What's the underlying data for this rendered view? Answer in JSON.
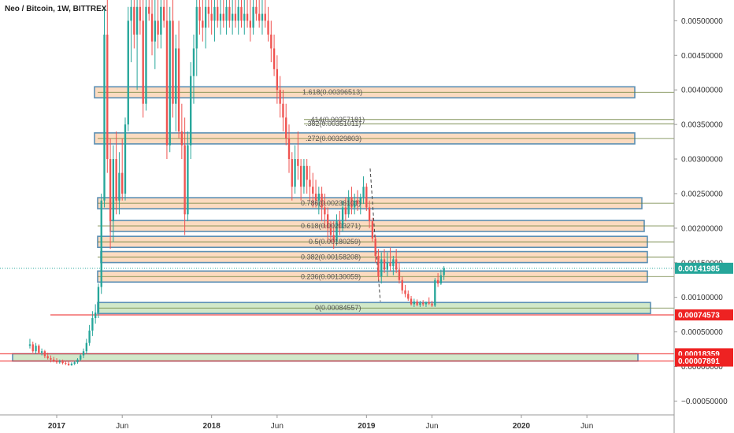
{
  "chart_data": {
    "type": "candlestick",
    "title": "Neo / Bitcoin, 1W, BITTREX",
    "ylim": [
      -0.0007,
      0.0053
    ],
    "y_ticks": [
      {
        "value": 0.005,
        "label": "0.00500000"
      },
      {
        "value": 0.0045,
        "label": "0.00450000"
      },
      {
        "value": 0.004,
        "label": "0.00400000"
      },
      {
        "value": 0.0035,
        "label": "0.00350000"
      },
      {
        "value": 0.003,
        "label": "0.00300000"
      },
      {
        "value": 0.0025,
        "label": "0.00250000"
      },
      {
        "value": 0.002,
        "label": "0.00200000"
      },
      {
        "value": 0.0015,
        "label": "0.00150000"
      },
      {
        "value": 0.001,
        "label": "0.00100000"
      },
      {
        "value": 0.0005,
        "label": "0.00050000"
      },
      {
        "value": 0.0,
        "label": "0.00000000"
      },
      {
        "value": -0.0005,
        "label": "−0.00050000"
      }
    ],
    "x_ticks": [
      {
        "label": "2017",
        "week": 0
      },
      {
        "label": "Jun",
        "week": 22
      },
      {
        "label": "2018",
        "week": 52
      },
      {
        "label": "Jun",
        "week": 74
      },
      {
        "label": "2019",
        "week": 104
      },
      {
        "label": "Jun",
        "week": 126
      },
      {
        "label": "2020",
        "week": 156
      },
      {
        "label": "Jun",
        "week": 178
      }
    ],
    "candles": [
      {
        "o": 0.0003,
        "h": 0.0004,
        "l": 0.00026,
        "c": 0.00032
      },
      {
        "o": 0.00032,
        "h": 0.00036,
        "l": 0.0002,
        "c": 0.00022
      },
      {
        "o": 0.00022,
        "h": 0.00034,
        "l": 0.00018,
        "c": 0.0003
      },
      {
        "o": 0.0003,
        "h": 0.00032,
        "l": 0.00018,
        "c": 0.0002
      },
      {
        "o": 0.0002,
        "h": 0.00026,
        "l": 0.00016,
        "c": 0.00022
      },
      {
        "o": 0.00022,
        "h": 0.00024,
        "l": 0.00012,
        "c": 0.00015
      },
      {
        "o": 0.00015,
        "h": 0.0002,
        "l": 0.0001,
        "c": 0.00012
      },
      {
        "o": 0.00012,
        "h": 0.00016,
        "l": 6e-05,
        "c": 0.0001
      },
      {
        "o": 0.0001,
        "h": 0.00014,
        "l": 6e-05,
        "c": 8e-05
      },
      {
        "o": 8e-05,
        "h": 0.00012,
        "l": 4e-05,
        "c": 6e-05
      },
      {
        "o": 6e-05,
        "h": 0.0001,
        "l": 4e-05,
        "c": 7e-05
      },
      {
        "o": 7e-05,
        "h": 0.0001,
        "l": 3e-05,
        "c": 5e-05
      },
      {
        "o": 5e-05,
        "h": 8e-05,
        "l": 2e-05,
        "c": 4e-05
      },
      {
        "o": 4e-05,
        "h": 7e-05,
        "l": 1e-05,
        "c": 2e-05
      },
      {
        "o": 2e-05,
        "h": 6e-05,
        "l": 1e-05,
        "c": 4e-05
      },
      {
        "o": 4e-05,
        "h": 8e-05,
        "l": 2e-05,
        "c": 6e-05
      },
      {
        "o": 6e-05,
        "h": 0.00012,
        "l": 4e-05,
        "c": 0.0001
      },
      {
        "o": 0.0001,
        "h": 0.00018,
        "l": 8e-05,
        "c": 0.00016
      },
      {
        "o": 0.00016,
        "h": 0.00026,
        "l": 0.00012,
        "c": 0.00022
      },
      {
        "o": 0.00022,
        "h": 0.0004,
        "l": 0.00018,
        "c": 0.00034
      },
      {
        "o": 0.00034,
        "h": 0.0006,
        "l": 0.0003,
        "c": 0.00052
      },
      {
        "o": 0.00052,
        "h": 0.0008,
        "l": 0.00044,
        "c": 0.0007
      },
      {
        "o": 0.0007,
        "h": 0.0009,
        "l": 0.00062,
        "c": 0.00078
      },
      {
        "o": 0.00078,
        "h": 0.0012,
        "l": 0.0007,
        "c": 0.00115
      },
      {
        "o": 0.00115,
        "h": 0.0025,
        "l": 0.00105,
        "c": 0.0024
      },
      {
        "o": 0.0024,
        "h": 0.0052,
        "l": 0.0023,
        "c": 0.0048
      },
      {
        "o": 0.0048,
        "h": 0.0054,
        "l": 0.0028,
        "c": 0.003
      },
      {
        "o": 0.003,
        "h": 0.0033,
        "l": 0.0017,
        "c": 0.0021
      },
      {
        "o": 0.0021,
        "h": 0.0032,
        "l": 0.0018,
        "c": 0.003
      },
      {
        "o": 0.003,
        "h": 0.0034,
        "l": 0.0022,
        "c": 0.0024
      },
      {
        "o": 0.0024,
        "h": 0.0031,
        "l": 0.0022,
        "c": 0.0028
      },
      {
        "o": 0.0028,
        "h": 0.0033,
        "l": 0.0024,
        "c": 0.0025
      },
      {
        "o": 0.0025,
        "h": 0.0036,
        "l": 0.0024,
        "c": 0.0035
      },
      {
        "o": 0.0035,
        "h": 0.0052,
        "l": 0.0034,
        "c": 0.005
      },
      {
        "o": 0.005,
        "h": 0.0054,
        "l": 0.0044,
        "c": 0.0052
      },
      {
        "o": 0.0052,
        "h": 0.0054,
        "l": 0.0046,
        "c": 0.0048
      },
      {
        "o": 0.0048,
        "h": 0.0054,
        "l": 0.004,
        "c": 0.0052
      },
      {
        "o": 0.0052,
        "h": 0.0054,
        "l": 0.0048,
        "c": 0.005
      },
      {
        "o": 0.005,
        "h": 0.0054,
        "l": 0.0036,
        "c": 0.0038
      },
      {
        "o": 0.0038,
        "h": 0.0054,
        "l": 0.0037,
        "c": 0.0052
      },
      {
        "o": 0.0052,
        "h": 0.0054,
        "l": 0.005,
        "c": 0.0051
      },
      {
        "o": 0.0051,
        "h": 0.0054,
        "l": 0.0045,
        "c": 0.0047
      },
      {
        "o": 0.0047,
        "h": 0.0054,
        "l": 0.0043,
        "c": 0.005
      },
      {
        "o": 0.005,
        "h": 0.0054,
        "l": 0.0046,
        "c": 0.0048
      },
      {
        "o": 0.0048,
        "h": 0.0054,
        "l": 0.0046,
        "c": 0.0052
      },
      {
        "o": 0.0052,
        "h": 0.0054,
        "l": 0.0049,
        "c": 0.005
      },
      {
        "o": 0.005,
        "h": 0.0053,
        "l": 0.003,
        "c": 0.0032
      },
      {
        "o": 0.0032,
        "h": 0.0052,
        "l": 0.0031,
        "c": 0.005
      },
      {
        "o": 0.005,
        "h": 0.0053,
        "l": 0.0036,
        "c": 0.0038
      },
      {
        "o": 0.0038,
        "h": 0.0048,
        "l": 0.0034,
        "c": 0.0046
      },
      {
        "o": 0.0046,
        "h": 0.005,
        "l": 0.0033,
        "c": 0.0034
      },
      {
        "o": 0.0034,
        "h": 0.0038,
        "l": 0.003,
        "c": 0.0032
      },
      {
        "o": 0.0032,
        "h": 0.0036,
        "l": 0.0019,
        "c": 0.0022
      },
      {
        "o": 0.0022,
        "h": 0.0034,
        "l": 0.0021,
        "c": 0.0032
      },
      {
        "o": 0.0032,
        "h": 0.0044,
        "l": 0.003,
        "c": 0.0042
      },
      {
        "o": 0.0042,
        "h": 0.0048,
        "l": 0.0038,
        "c": 0.0046
      },
      {
        "o": 0.0046,
        "h": 0.0054,
        "l": 0.0042,
        "c": 0.0052
      },
      {
        "o": 0.0052,
        "h": 0.0054,
        "l": 0.0048,
        "c": 0.005
      },
      {
        "o": 0.005,
        "h": 0.0054,
        "l": 0.0047,
        "c": 0.0049
      },
      {
        "o": 0.0049,
        "h": 0.0054,
        "l": 0.0046,
        "c": 0.0052
      },
      {
        "o": 0.0052,
        "h": 0.0054,
        "l": 0.0049,
        "c": 0.0051
      },
      {
        "o": 0.0051,
        "h": 0.0054,
        "l": 0.0048,
        "c": 0.005
      },
      {
        "o": 0.005,
        "h": 0.0054,
        "l": 0.0047,
        "c": 0.0052
      },
      {
        "o": 0.0052,
        "h": 0.0054,
        "l": 0.0049,
        "c": 0.005
      },
      {
        "o": 0.005,
        "h": 0.0054,
        "l": 0.0048,
        "c": 0.0051
      },
      {
        "o": 0.0051,
        "h": 0.0054,
        "l": 0.0049,
        "c": 0.005
      },
      {
        "o": 0.005,
        "h": 0.0054,
        "l": 0.0048,
        "c": 0.0052
      },
      {
        "o": 0.0052,
        "h": 0.0054,
        "l": 0.0049,
        "c": 0.005
      },
      {
        "o": 0.005,
        "h": 0.0054,
        "l": 0.0048,
        "c": 0.0051
      },
      {
        "o": 0.0051,
        "h": 0.0054,
        "l": 0.0049,
        "c": 0.005
      },
      {
        "o": 0.005,
        "h": 0.0054,
        "l": 0.0048,
        "c": 0.0052
      },
      {
        "o": 0.0052,
        "h": 0.0054,
        "l": 0.0049,
        "c": 0.005
      },
      {
        "o": 0.005,
        "h": 0.0054,
        "l": 0.0048,
        "c": 0.0051
      },
      {
        "o": 0.0051,
        "h": 0.0054,
        "l": 0.0049,
        "c": 0.005
      },
      {
        "o": 0.005,
        "h": 0.0054,
        "l": 0.0047,
        "c": 0.0049
      },
      {
        "o": 0.0049,
        "h": 0.0054,
        "l": 0.0048,
        "c": 0.0052
      },
      {
        "o": 0.0052,
        "h": 0.0054,
        "l": 0.005,
        "c": 0.0051
      },
      {
        "o": 0.0051,
        "h": 0.0054,
        "l": 0.0049,
        "c": 0.005
      },
      {
        "o": 0.005,
        "h": 0.0054,
        "l": 0.0048,
        "c": 0.0051
      },
      {
        "o": 0.0051,
        "h": 0.0053,
        "l": 0.0049,
        "c": 0.005
      },
      {
        "o": 0.005,
        "h": 0.0052,
        "l": 0.0047,
        "c": 0.0048
      },
      {
        "o": 0.0048,
        "h": 0.005,
        "l": 0.0044,
        "c": 0.0046
      },
      {
        "o": 0.0046,
        "h": 0.0048,
        "l": 0.0042,
        "c": 0.0043
      },
      {
        "o": 0.0043,
        "h": 0.0045,
        "l": 0.0038,
        "c": 0.004
      },
      {
        "o": 0.004,
        "h": 0.0042,
        "l": 0.0036,
        "c": 0.0038
      },
      {
        "o": 0.0038,
        "h": 0.004,
        "l": 0.0034,
        "c": 0.0036
      },
      {
        "o": 0.0036,
        "h": 0.0038,
        "l": 0.0032,
        "c": 0.0033
      },
      {
        "o": 0.0033,
        "h": 0.0035,
        "l": 0.0028,
        "c": 0.003
      },
      {
        "o": 0.003,
        "h": 0.0031,
        "l": 0.0024,
        "c": 0.0026
      },
      {
        "o": 0.0026,
        "h": 0.0032,
        "l": 0.0025,
        "c": 0.003
      },
      {
        "o": 0.003,
        "h": 0.0034,
        "l": 0.0027,
        "c": 0.0029
      },
      {
        "o": 0.0029,
        "h": 0.003,
        "l": 0.0024,
        "c": 0.0026
      },
      {
        "o": 0.0026,
        "h": 0.003,
        "l": 0.0025,
        "c": 0.0029
      },
      {
        "o": 0.0029,
        "h": 0.003,
        "l": 0.0025,
        "c": 0.0027
      },
      {
        "o": 0.0027,
        "h": 0.0029,
        "l": 0.0024,
        "c": 0.0026
      },
      {
        "o": 0.0026,
        "h": 0.0028,
        "l": 0.0023,
        "c": 0.0025
      },
      {
        "o": 0.0025,
        "h": 0.0027,
        "l": 0.0023,
        "c": 0.0024
      },
      {
        "o": 0.0024,
        "h": 0.0026,
        "l": 0.0022,
        "c": 0.0025
      },
      {
        "o": 0.0025,
        "h": 0.0026,
        "l": 0.0021,
        "c": 0.0023
      },
      {
        "o": 0.0023,
        "h": 0.0025,
        "l": 0.002,
        "c": 0.0022
      },
      {
        "o": 0.0022,
        "h": 0.0023,
        "l": 0.0018,
        "c": 0.002
      },
      {
        "o": 0.002,
        "h": 0.0021,
        "l": 0.0018,
        "c": 0.0019
      },
      {
        "o": 0.0019,
        "h": 0.0021,
        "l": 0.0017,
        "c": 0.0018
      },
      {
        "o": 0.0018,
        "h": 0.0022,
        "l": 0.00175,
        "c": 0.0021
      },
      {
        "o": 0.0021,
        "h": 0.00225,
        "l": 0.0019,
        "c": 0.002
      },
      {
        "o": 0.002,
        "h": 0.0024,
        "l": 0.00195,
        "c": 0.0023
      },
      {
        "o": 0.0023,
        "h": 0.00245,
        "l": 0.0021,
        "c": 0.0022
      },
      {
        "o": 0.0022,
        "h": 0.00255,
        "l": 0.00215,
        "c": 0.00245
      },
      {
        "o": 0.00245,
        "h": 0.0026,
        "l": 0.0022,
        "c": 0.0023
      },
      {
        "o": 0.0023,
        "h": 0.0025,
        "l": 0.0022,
        "c": 0.0024
      },
      {
        "o": 0.0024,
        "h": 0.00255,
        "l": 0.00225,
        "c": 0.00235
      },
      {
        "o": 0.00235,
        "h": 0.0025,
        "l": 0.0022,
        "c": 0.00245
      },
      {
        "o": 0.00245,
        "h": 0.00275,
        "l": 0.00235,
        "c": 0.0026
      },
      {
        "o": 0.0026,
        "h": 0.00265,
        "l": 0.00225,
        "c": 0.0023
      },
      {
        "o": 0.0023,
        "h": 0.0024,
        "l": 0.002,
        "c": 0.0021
      },
      {
        "o": 0.0021,
        "h": 0.00215,
        "l": 0.0018,
        "c": 0.00185
      },
      {
        "o": 0.00185,
        "h": 0.0019,
        "l": 0.0015,
        "c": 0.0016
      },
      {
        "o": 0.0016,
        "h": 0.0017,
        "l": 0.00125,
        "c": 0.0013
      },
      {
        "o": 0.0013,
        "h": 0.00165,
        "l": 0.0012,
        "c": 0.00155
      },
      {
        "o": 0.00155,
        "h": 0.0017,
        "l": 0.00135,
        "c": 0.0014
      },
      {
        "o": 0.0014,
        "h": 0.00165,
        "l": 0.0013,
        "c": 0.0015
      },
      {
        "o": 0.0015,
        "h": 0.00172,
        "l": 0.00138,
        "c": 0.00145
      },
      {
        "o": 0.00145,
        "h": 0.0016,
        "l": 0.00132,
        "c": 0.00155
      },
      {
        "o": 0.00155,
        "h": 0.0017,
        "l": 0.00135,
        "c": 0.0014
      },
      {
        "o": 0.0014,
        "h": 0.0015,
        "l": 0.0012,
        "c": 0.00125
      },
      {
        "o": 0.00125,
        "h": 0.0013,
        "l": 0.00105,
        "c": 0.0011
      },
      {
        "o": 0.0011,
        "h": 0.00118,
        "l": 0.001,
        "c": 0.00105
      },
      {
        "o": 0.00105,
        "h": 0.0011,
        "l": 0.00095,
        "c": 0.00098
      },
      {
        "o": 0.00098,
        "h": 0.00102,
        "l": 0.00088,
        "c": 0.0009
      },
      {
        "o": 0.0009,
        "h": 0.00098,
        "l": 0.00086,
        "c": 0.00094
      },
      {
        "o": 0.00094,
        "h": 0.00097,
        "l": 0.00087,
        "c": 0.00089
      },
      {
        "o": 0.00089,
        "h": 0.00095,
        "l": 0.00086,
        "c": 0.00092
      },
      {
        "o": 0.00092,
        "h": 0.00096,
        "l": 0.00087,
        "c": 0.0009
      },
      {
        "o": 0.0009,
        "h": 0.00094,
        "l": 0.00086,
        "c": 0.00093
      },
      {
        "o": 0.00093,
        "h": 0.001,
        "l": 0.00089,
        "c": 0.00091
      },
      {
        "o": 0.00091,
        "h": 0.00095,
        "l": 0.00086,
        "c": 0.00088
      },
      {
        "o": 0.00088,
        "h": 0.00128,
        "l": 0.00086,
        "c": 0.00125
      },
      {
        "o": 0.00125,
        "h": 0.00135,
        "l": 0.00115,
        "c": 0.0012
      },
      {
        "o": 0.0012,
        "h": 0.0014,
        "l": 0.00118,
        "c": 0.00132
      },
      {
        "o": 0.00132,
        "h": 0.00145,
        "l": 0.00125,
        "c": 0.00142
      }
    ],
    "fib_levels": [
      {
        "label": "1.618(0.00396513)",
        "value": 0.00396513,
        "box": true
      },
      {
        "label": ".414(0.00357181)",
        "value": 0.00357181,
        "box": false
      },
      {
        "label": ".382(0.00351011)",
        "value": 0.00351011,
        "box": false
      },
      {
        "label": ".272(0.00329803)",
        "value": 0.00329803,
        "box": true
      },
      {
        "label": "0.786(0.00236101)",
        "value": 0.00236101,
        "box": true
      },
      {
        "label": "0.618(0.00203271)",
        "value": 0.00203271,
        "box": true
      },
      {
        "label": "0.5(0.00180259)",
        "value": 0.00180259,
        "box": true
      },
      {
        "label": "0.382(0.00158208)",
        "value": 0.00158208,
        "box": true
      },
      {
        "label": "0.236(0.00130059)",
        "value": 0.00130059,
        "box": true
      },
      {
        "label": "0(0.00084557)",
        "value": 0.00084557,
        "box": true,
        "support": true
      }
    ],
    "horizontal_lines": [
      {
        "value": 0.00074573,
        "color": "#ee2222"
      },
      {
        "value": 0.00018359,
        "color": "#ee2222"
      },
      {
        "value": 7.891e-05,
        "color": "#ee2222"
      }
    ],
    "price_badges": [
      {
        "value": 0.00141985,
        "label": "0.00141985",
        "color": "#26a69a"
      },
      {
        "value": 0.00074573,
        "label": "0.00074573",
        "color": "#ee2222"
      },
      {
        "value": 0.00018359,
        "label": "0.00018359",
        "color": "#ee2222"
      },
      {
        "value": 7.891e-05,
        "label": "0.00007891",
        "color": "#ee2222"
      }
    ],
    "last_price": 0.00141985,
    "colors": {
      "up": "#26a69a",
      "down": "#ef5350",
      "fib_box_fill": "#fbd5b5",
      "support_box_fill": "#c9e4bf",
      "box_stroke": "#5b8fb4",
      "last_price_line": "#26a69a"
    }
  }
}
